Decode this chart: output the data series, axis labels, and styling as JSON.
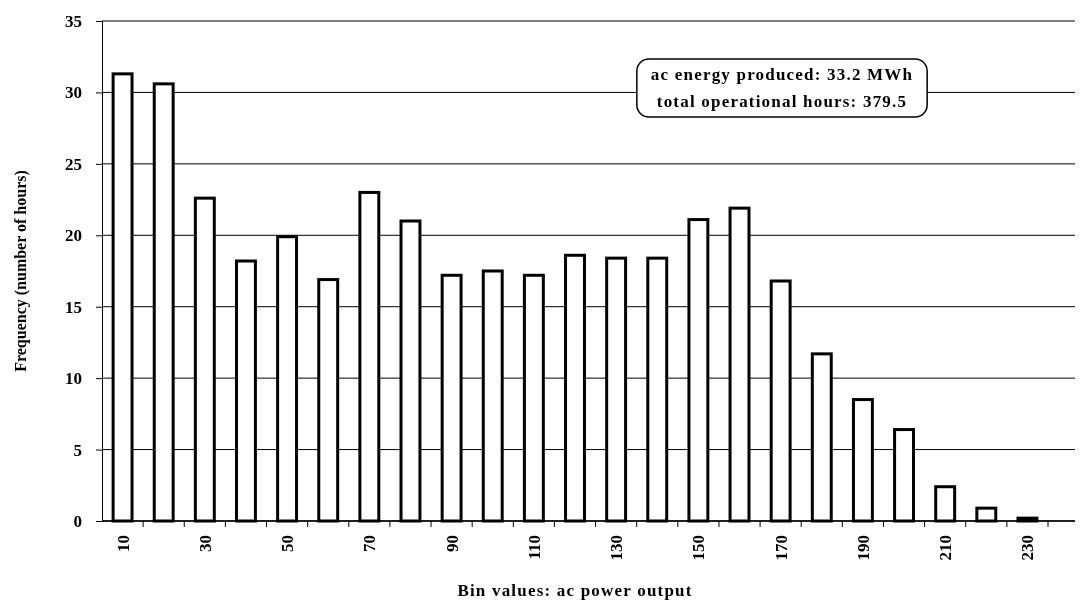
{
  "chart_data": {
    "type": "bar",
    "xlabel": "Bin values:  ac power output",
    "ylabel": "Frequency (number of hours)",
    "categories": [
      "10",
      null,
      "30",
      null,
      "50",
      null,
      "70",
      null,
      "90",
      null,
      "110",
      null,
      "130",
      null,
      "150",
      null,
      "170",
      null,
      "190",
      null,
      "210",
      null,
      "230"
    ],
    "values": [
      31.3,
      30.6,
      22.6,
      18.2,
      19.9,
      16.9,
      23.0,
      21.0,
      17.2,
      17.5,
      17.2,
      18.6,
      18.4,
      18.4,
      21.1,
      21.9,
      16.8,
      11.7,
      8.5,
      6.4,
      2.4,
      0.9,
      0.2
    ],
    "color": "#ffffff",
    "ylim": [
      0,
      35
    ],
    "yticks": [
      0,
      5,
      10,
      15,
      20,
      25,
      30,
      35
    ],
    "grid": "y",
    "annotations": [
      "ac energy produced:  33.2 MWh\ntotal operational hours:  379.5"
    ]
  }
}
